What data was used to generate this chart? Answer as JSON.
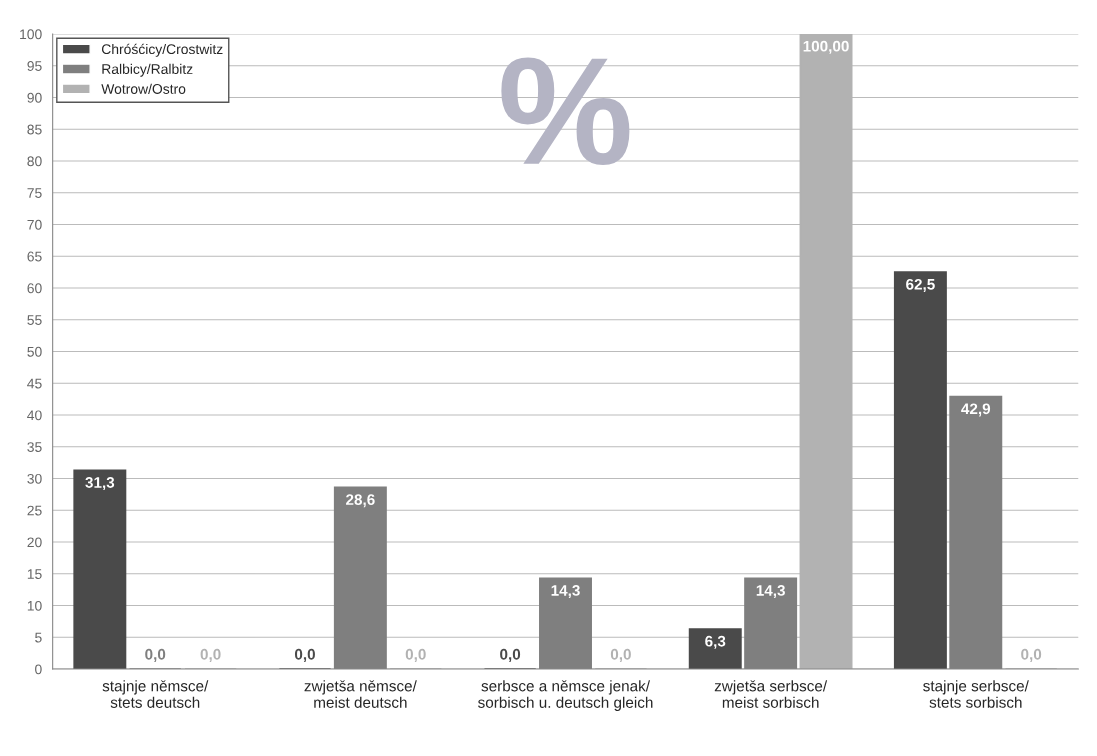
{
  "chart_data": {
    "type": "bar",
    "categories": [
      "stajnje němsce/\nstets deutsch",
      "zwjetša němsce/\nmeist deutsch",
      "serbsce a němsce jenak/\nsorbisch u. deutsch gleich",
      "zwjetša serbsce/\nmeist sorbisch",
      "stajnje serbsce/\nstets sorbisch"
    ],
    "series": [
      {
        "name": "Chróśćicy/Crostwitz",
        "color": "#4a4a4a",
        "values": [
          31.3,
          0,
          0,
          6.3,
          62.5
        ],
        "value_labels": [
          "31,3",
          "0,0",
          "0,0",
          "6,3",
          "62,5"
        ]
      },
      {
        "name": "Ralbicy/Ralbitz",
        "color": "#7f7f7f",
        "values": [
          0,
          28.6,
          14.3,
          14.3,
          42.9
        ],
        "value_labels": [
          "0,0",
          "28,6",
          "14,3",
          "14,3",
          "42,9"
        ]
      },
      {
        "name": "Wotrow/Ostro",
        "color": "#b2b2b2",
        "values": [
          0,
          0,
          0,
          100,
          0
        ],
        "value_labels": [
          "0,0",
          "0,0",
          "0,0",
          "100,00",
          "0,0"
        ]
      }
    ],
    "ylim": [
      0,
      100
    ],
    "yticks": [
      0,
      5,
      10,
      15,
      20,
      25,
      30,
      35,
      40,
      45,
      50,
      55,
      60,
      65,
      70,
      75,
      80,
      85,
      90,
      95,
      100
    ],
    "grid": "y",
    "legend": "top left",
    "annotations": [
      "%"
    ]
  }
}
